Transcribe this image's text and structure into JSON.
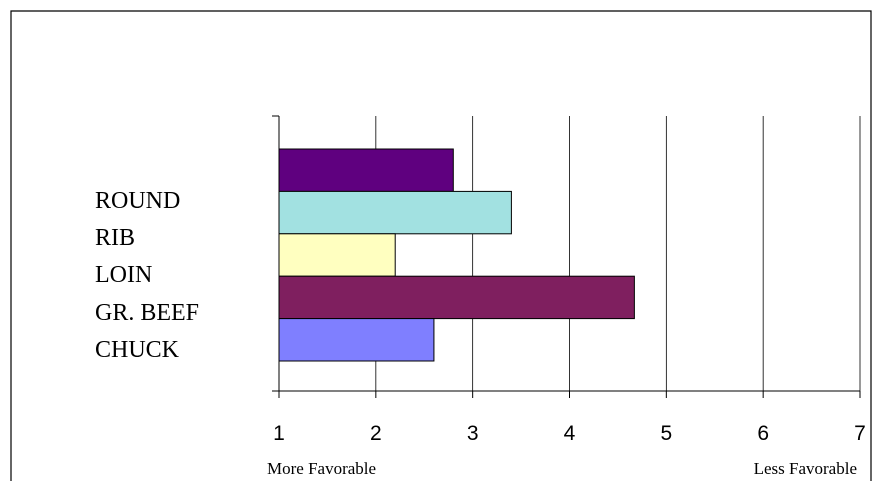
{
  "chart_data": {
    "type": "bar",
    "orientation": "horizontal",
    "title": "",
    "category_labels": [
      "ROUND",
      "RIB",
      "LOIN",
      "GR. BEEF",
      "CHUCK"
    ],
    "bars": [
      {
        "value": 2.8,
        "color": "#5f007f"
      },
      {
        "value": 3.4,
        "color": "#a2e1e1"
      },
      {
        "value": 2.2,
        "color": "#ffffc0"
      },
      {
        "value": 4.67,
        "color": "#7f1f5f"
      },
      {
        "value": 2.6,
        "color": "#7f7fff"
      }
    ],
    "xlim": [
      1,
      7
    ],
    "xticks": [
      "1",
      "2",
      "3",
      "4",
      "5",
      "6",
      "7"
    ],
    "x_end_labels": {
      "left": "More Favorable",
      "right": "Less Favorable"
    },
    "grid": true,
    "legend": "none"
  }
}
